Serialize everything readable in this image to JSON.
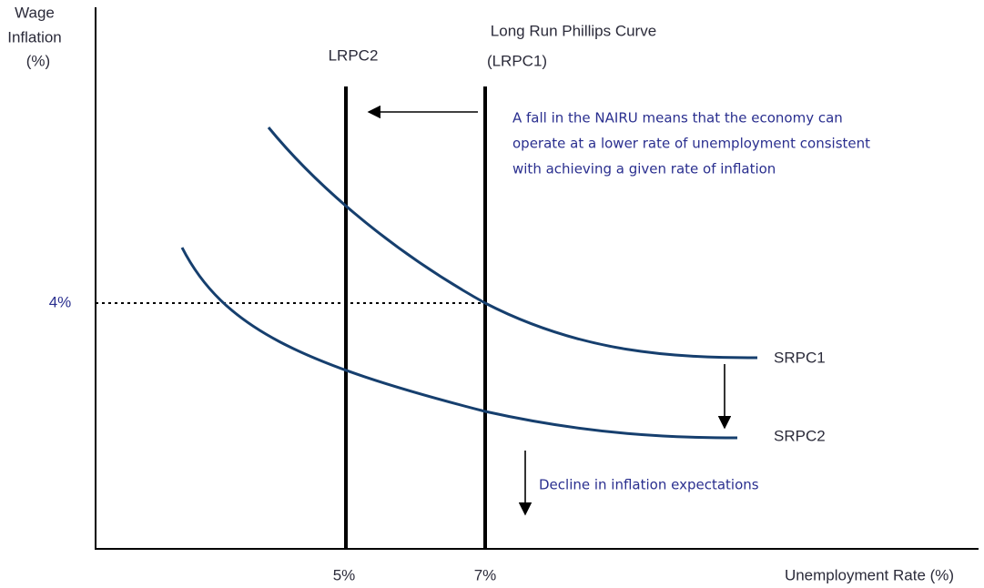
{
  "axes": {
    "y_label": [
      "Wage",
      "Inflation",
      "(%)"
    ],
    "x_label": "Unemployment Rate (%)",
    "y_tick": "4%",
    "x_ticks": [
      "5%",
      "7%"
    ]
  },
  "curves": {
    "lrpc2": "LRPC2",
    "lrpc1": [
      "Long Run Phillips Curve",
      "(LRPC1)"
    ],
    "srpc1": "SRPC1",
    "srpc2": "SRPC2"
  },
  "annotations": {
    "nairu": [
      "A fall in the NAIRU means that the economy can",
      "operate at a lower rate of unemployment consistent",
      "with achieving a given rate of inflation"
    ],
    "expectations": "Decline in inflation expectations"
  }
}
